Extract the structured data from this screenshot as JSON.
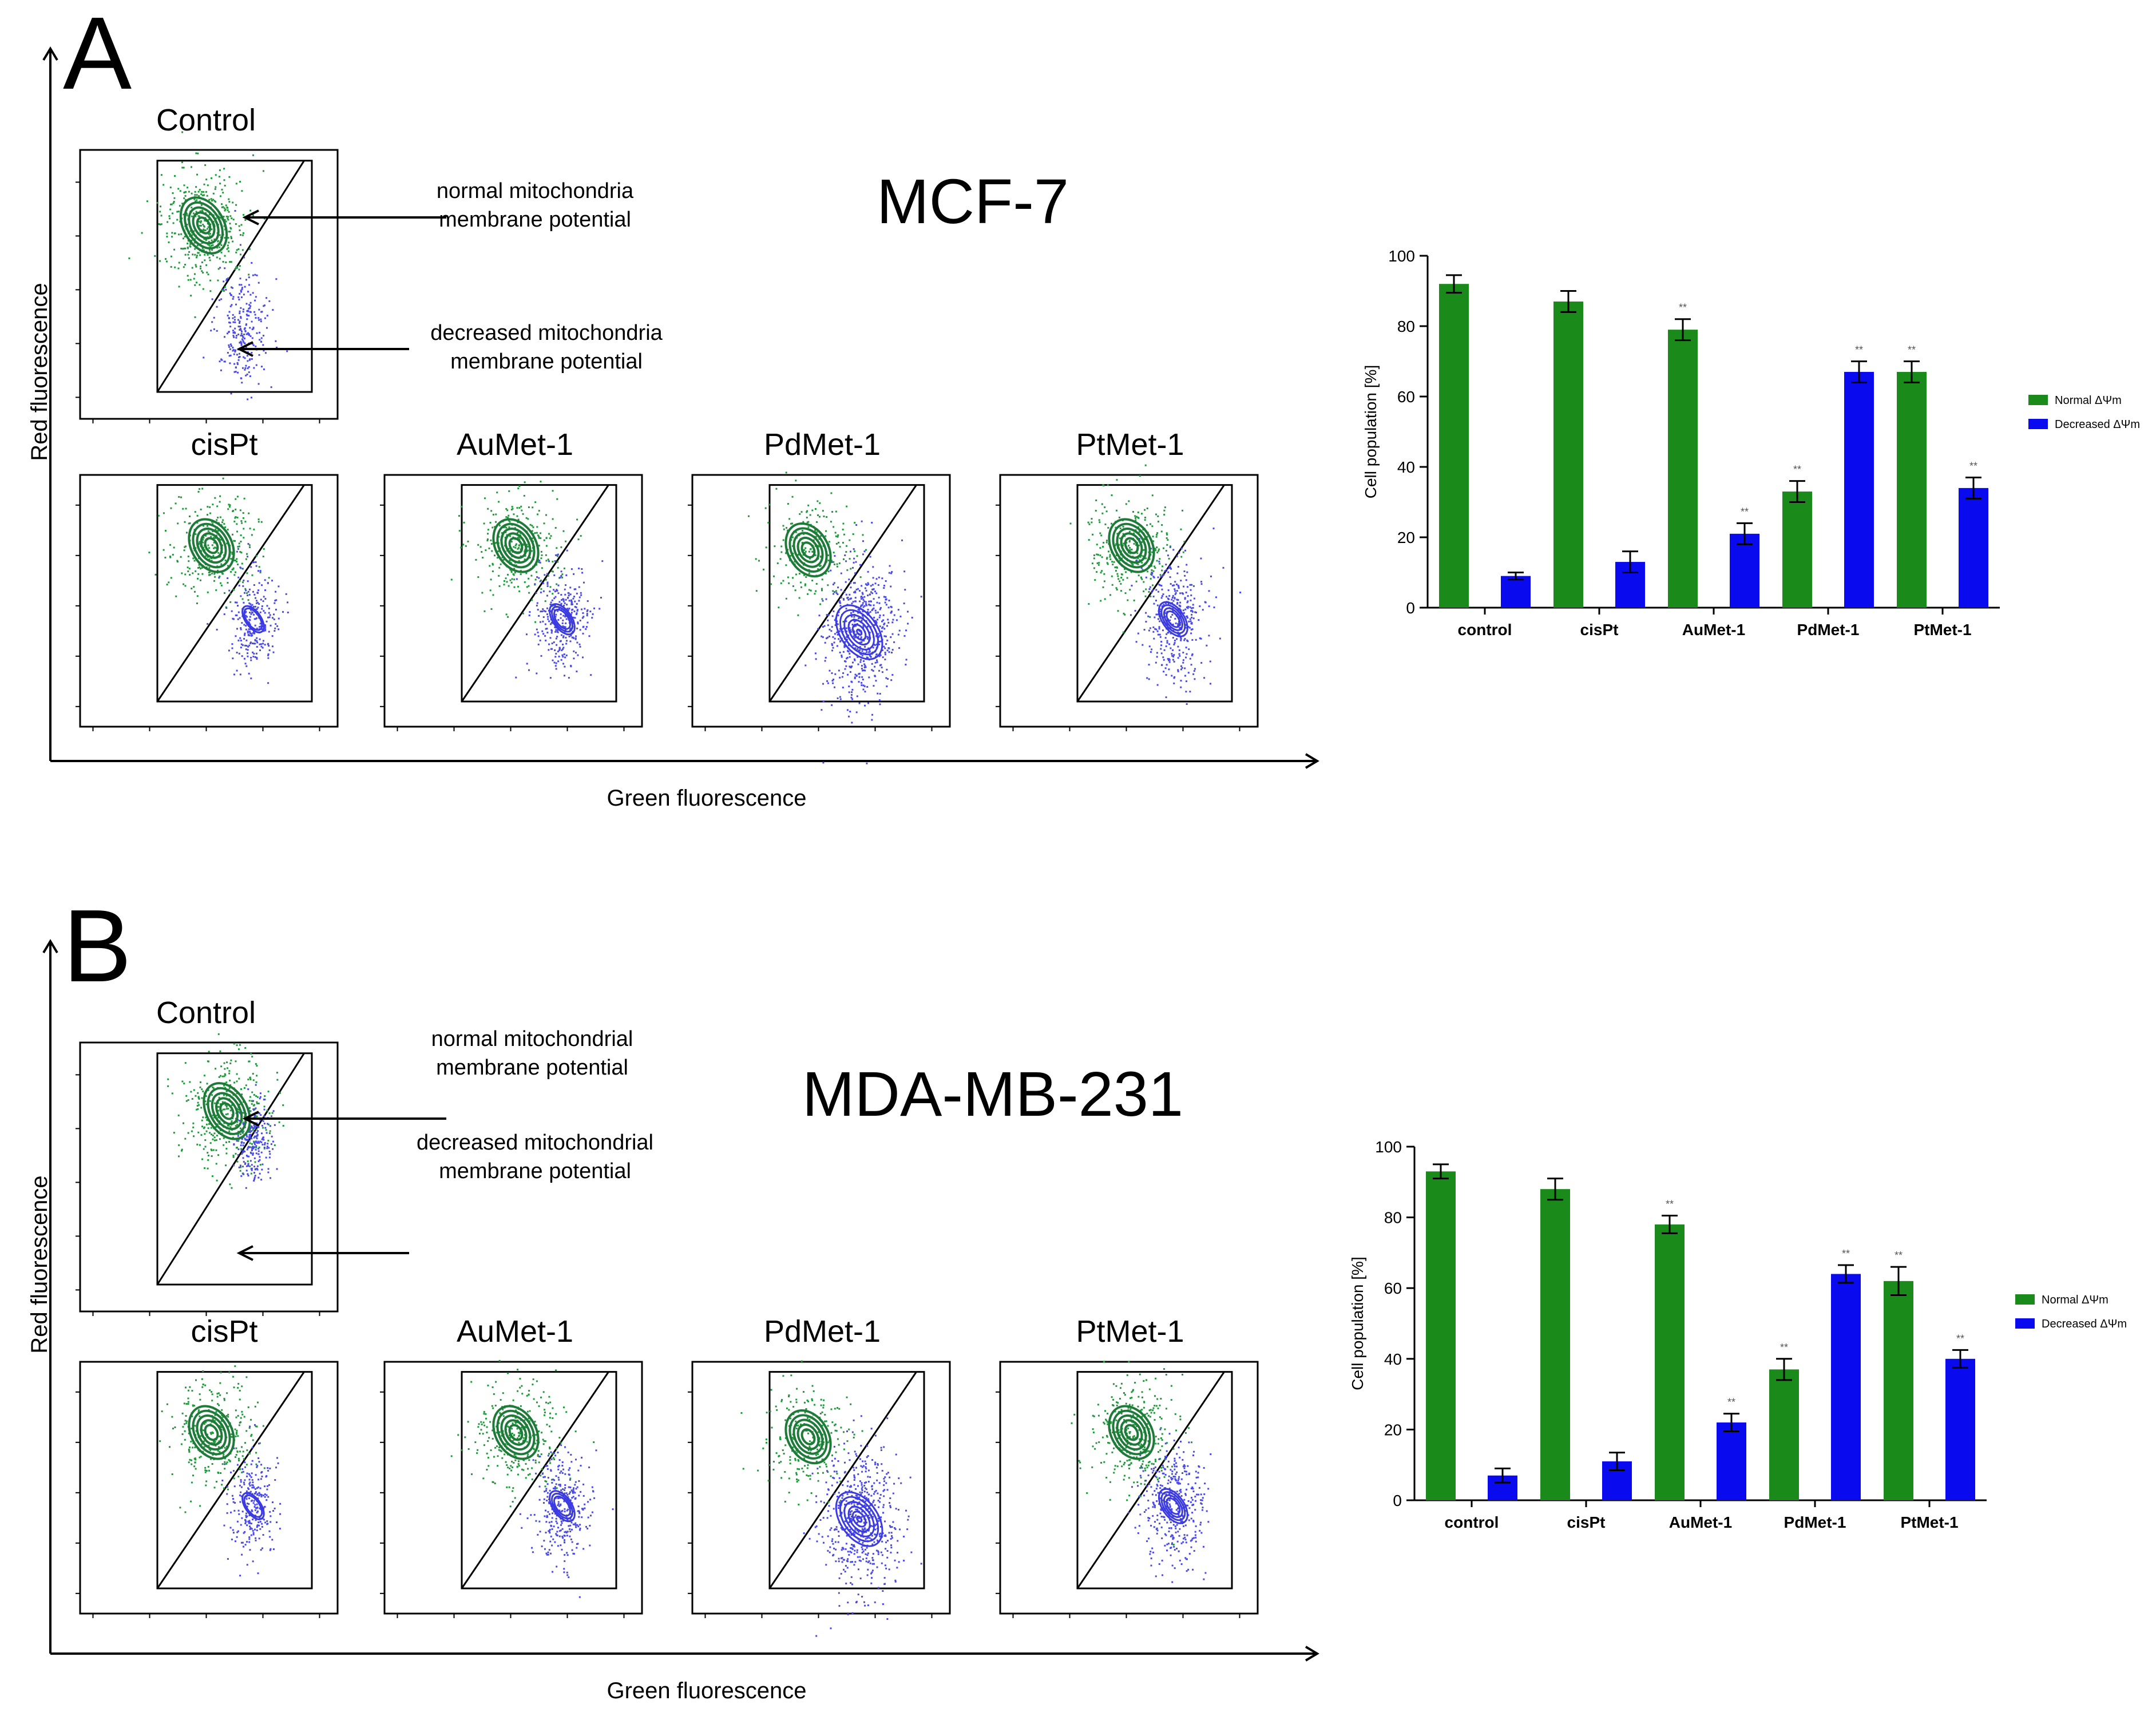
{
  "colors": {
    "normal": "#1a8a1a",
    "decreased": "#0a0aee",
    "green_dots": "#1f9a3a",
    "blue_dots": "#4a4ae6",
    "green_contour": "#1f7a3a",
    "blue_contour": "#3a3ae0"
  },
  "panels": [
    {
      "letter": "A",
      "cell_line": "MCF-7",
      "y_axis_label": "Red fluorescence",
      "x_axis_label": "Green fluorescence",
      "control_title": "Control",
      "annotation_normal": [
        "normal mitochondria",
        "membrane potential"
      ],
      "annotation_decreased": [
        "decreased mitochondria",
        "membrane potential"
      ],
      "subplot_titles": [
        "cisPt",
        "AuMet-1",
        "PdMet-1",
        "PtMet-1"
      ]
    },
    {
      "letter": "B",
      "cell_line": "MDA-MB-231",
      "y_axis_label": "Red fluorescence",
      "x_axis_label": "Green fluorescence",
      "control_title": "Control",
      "annotation_normal": [
        "normal mitochondrial",
        "membrane potential"
      ],
      "annotation_decreased": [
        "decreased mitochondrial",
        "membrane potential"
      ],
      "subplot_titles": [
        "cisPt",
        "AuMet-1",
        "PdMet-1",
        "PtMet-1"
      ]
    }
  ],
  "chart_data": [
    {
      "type": "bar",
      "panel": "A",
      "categories": [
        "control",
        "cisPt",
        "AuMet-1",
        "PdMet-1",
        "PtMet-1"
      ],
      "series": [
        {
          "name": "Normal ΔΨm",
          "values": [
            92,
            87,
            79,
            33,
            67
          ],
          "errors": [
            2.5,
            3,
            3,
            3,
            3
          ],
          "significance": [
            "",
            "",
            "**",
            "**",
            "**"
          ]
        },
        {
          "name": "Decreased ΔΨm",
          "values": [
            9,
            13,
            21,
            67,
            34
          ],
          "errors": [
            1,
            3,
            3,
            3,
            3
          ],
          "significance": [
            "",
            "",
            "**",
            "**",
            "**"
          ]
        }
      ],
      "title": "",
      "xlabel": "",
      "ylabel": "Cell population [%]",
      "ylim": [
        0,
        100
      ],
      "yticks": [
        0,
        20,
        40,
        60,
        80,
        100
      ],
      "legend": "right",
      "grid": false
    },
    {
      "type": "bar",
      "panel": "B",
      "categories": [
        "control",
        "cisPt",
        "AuMet-1",
        "PdMet-1",
        "PtMet-1"
      ],
      "series": [
        {
          "name": "Normal ΔΨm",
          "values": [
            93,
            88,
            78,
            37,
            62
          ],
          "errors": [
            2,
            3,
            2.5,
            3,
            4
          ],
          "significance": [
            "",
            "",
            "**",
            "**",
            "**"
          ]
        },
        {
          "name": "Decreased ΔΨm",
          "values": [
            7,
            11,
            22,
            64,
            40
          ],
          "errors": [
            2,
            2.5,
            2.5,
            2.5,
            2.5
          ],
          "significance": [
            "",
            "",
            "**",
            "**",
            "**"
          ]
        }
      ],
      "title": "",
      "xlabel": "",
      "ylabel": "Cell population [%]",
      "ylim": [
        0,
        100
      ],
      "yticks": [
        0,
        20,
        40,
        60,
        80,
        100
      ],
      "legend": "right",
      "grid": false
    }
  ]
}
